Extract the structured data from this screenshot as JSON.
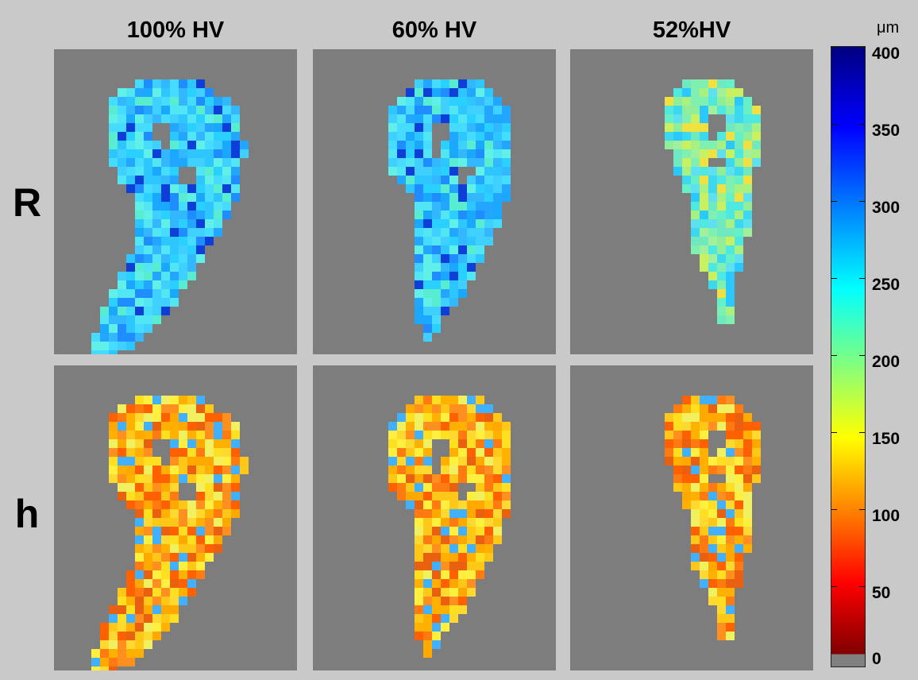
{
  "column_titles": [
    "100% HV",
    "60% HV",
    "52%HV"
  ],
  "row_labels": [
    "R",
    "h"
  ],
  "colorbar": {
    "unit": "μm",
    "ticks": [
      "400",
      "350",
      "300",
      "250",
      "200",
      "150",
      "100",
      "50",
      "0"
    ]
  },
  "colors": {
    "background": "#c9c9c9",
    "panel": "#7d7d7d"
  }
}
